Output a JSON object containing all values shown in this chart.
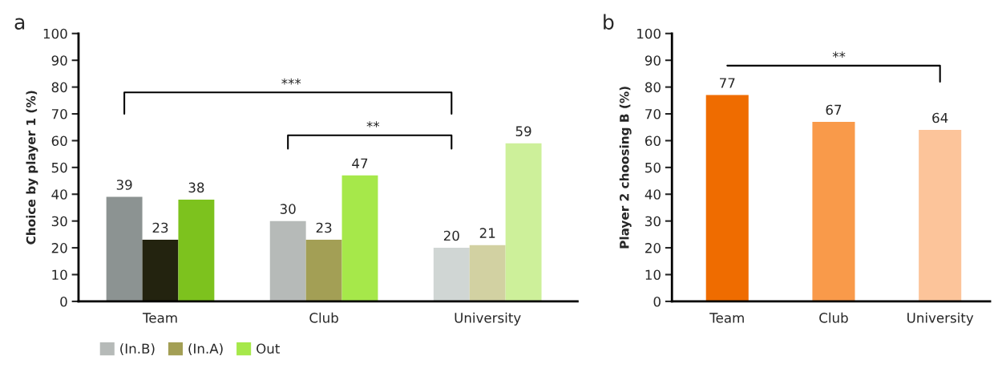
{
  "chart_data": [
    {
      "type": "bar",
      "title": "a",
      "ylabel": "Choice by player 1 (%)",
      "categories": [
        "Team",
        "Club",
        "University"
      ],
      "ylim": [
        0,
        100
      ],
      "yticks": [
        0,
        10,
        20,
        30,
        40,
        50,
        60,
        70,
        80,
        90,
        100
      ],
      "grid": false,
      "legend": "bottom left",
      "data_labels": true,
      "series": [
        {
          "name": "(In.B)",
          "color": "#b6bab8",
          "colors": [
            "#8c9392",
            "#b6bab8",
            "#d0d6d4"
          ],
          "values": [
            39,
            30,
            20
          ]
        },
        {
          "name": "(In.A)",
          "color": "#a39f55",
          "colors": [
            "#23230f",
            "#a39f55",
            "#d2d1a2"
          ],
          "values": [
            23,
            23,
            21
          ]
        },
        {
          "name": "Out",
          "color": "#a6e84a",
          "colors": [
            "#7dc21e",
            "#a6e84a",
            "#cdf09a"
          ],
          "values": [
            38,
            47,
            59
          ]
        }
      ],
      "annotations": [
        "***",
        "**"
      ]
    },
    {
      "type": "bar",
      "title": "b",
      "ylabel": "Player 2 choosing B (%)",
      "categories": [
        "Team",
        "Club",
        "University"
      ],
      "ylim": [
        0,
        100
      ],
      "yticks": [
        0,
        10,
        20,
        30,
        40,
        50,
        60,
        70,
        80,
        90,
        100
      ],
      "grid": false,
      "data_labels": true,
      "series": [
        {
          "colors": [
            "#ef6c00",
            "#f99a4a",
            "#fcc49a"
          ],
          "values": [
            77,
            67,
            64
          ]
        }
      ],
      "annotations": [
        "**"
      ]
    }
  ]
}
